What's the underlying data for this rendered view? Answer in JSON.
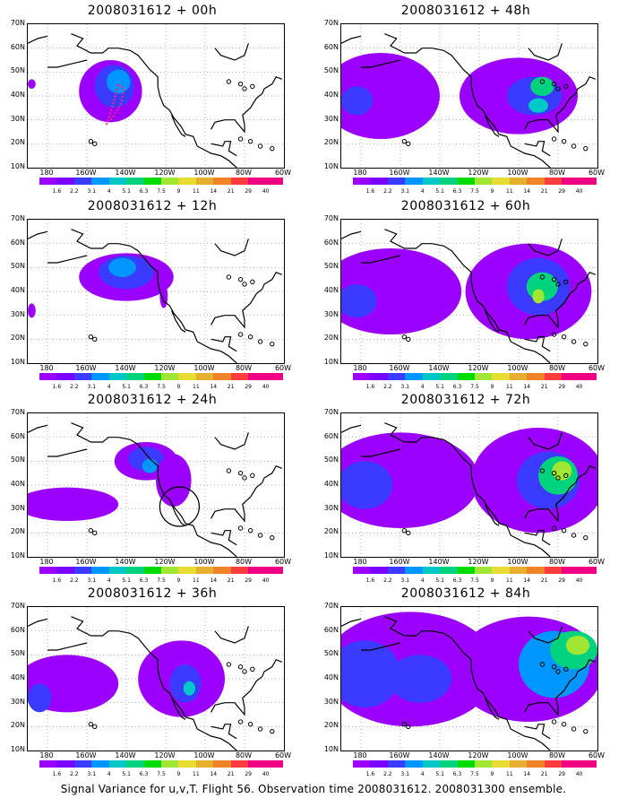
{
  "panels": [
    {
      "title": "2008031612 + 00h"
    },
    {
      "title": "2008031612 + 48h"
    },
    {
      "title": "2008031612 + 12h"
    },
    {
      "title": "2008031612 + 60h"
    },
    {
      "title": "2008031612 + 24h"
    },
    {
      "title": "2008031612 + 72h"
    },
    {
      "title": "2008031612 + 36h"
    },
    {
      "title": "2008031612 + 84h"
    }
  ],
  "lat_labels": [
    "70N",
    "60N",
    "50N",
    "40N",
    "30N",
    "20N",
    "10N"
  ],
  "lon_labels": [
    "180",
    "160W",
    "140W",
    "120W",
    "100W",
    "80W",
    "60W"
  ],
  "colorbar": {
    "labels": [
      "1.6",
      "2.2",
      "3.1",
      "4",
      "5.1",
      "6.3",
      "7.5",
      "9",
      "11",
      "14",
      "21",
      "29",
      "40"
    ],
    "colors": [
      "#9b00ff",
      "#7a00ff",
      "#3b3bff",
      "#0096ff",
      "#00c8c8",
      "#00d27d",
      "#00dc00",
      "#a0e632",
      "#e6dc32",
      "#e6af2d",
      "#f08228",
      "#fa3c3c",
      "#f00082"
    ]
  },
  "footer": "Signal Variance for u,v,T. Flight 56. Observation time 2008031612. 2008031300 ensemble."
}
